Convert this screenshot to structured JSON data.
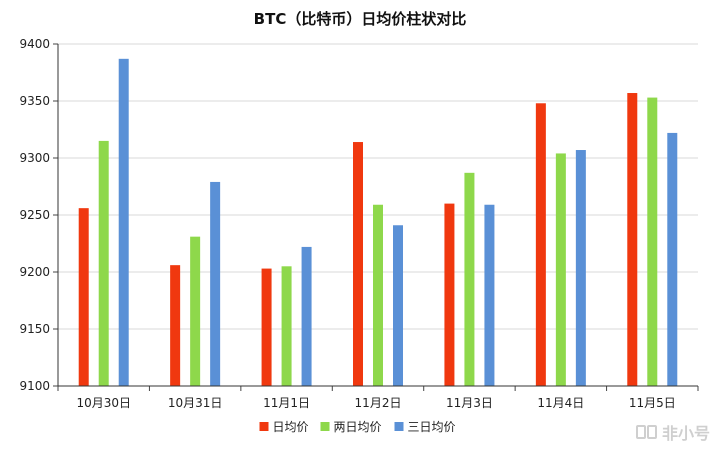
{
  "chart_data": {
    "type": "bar",
    "title": "BTC（比特币）日均价柱状对比",
    "categories": [
      "10月30日",
      "10月31日",
      "11月1日",
      "11月2日",
      "11月3日",
      "11月4日",
      "11月5日"
    ],
    "series": [
      {
        "name": "日均价",
        "color": "#f0380f",
        "values": [
          9256,
          9206,
          9203,
          9314,
          9260,
          9348,
          9357
        ]
      },
      {
        "name": "两日均价",
        "color": "#8ed84b",
        "values": [
          9315,
          9231,
          9205,
          9259,
          9287,
          9304,
          9353
        ]
      },
      {
        "name": "三日均价",
        "color": "#5a90d6",
        "values": [
          9387,
          9279,
          9222,
          9241,
          9259,
          9307,
          9322
        ]
      }
    ],
    "ylim": [
      9100,
      9400
    ],
    "yticks": [
      9100,
      9150,
      9200,
      9250,
      9300,
      9350,
      9400
    ],
    "grid": true,
    "legend_position": "bottom"
  },
  "watermark": {
    "text": "非小号"
  }
}
